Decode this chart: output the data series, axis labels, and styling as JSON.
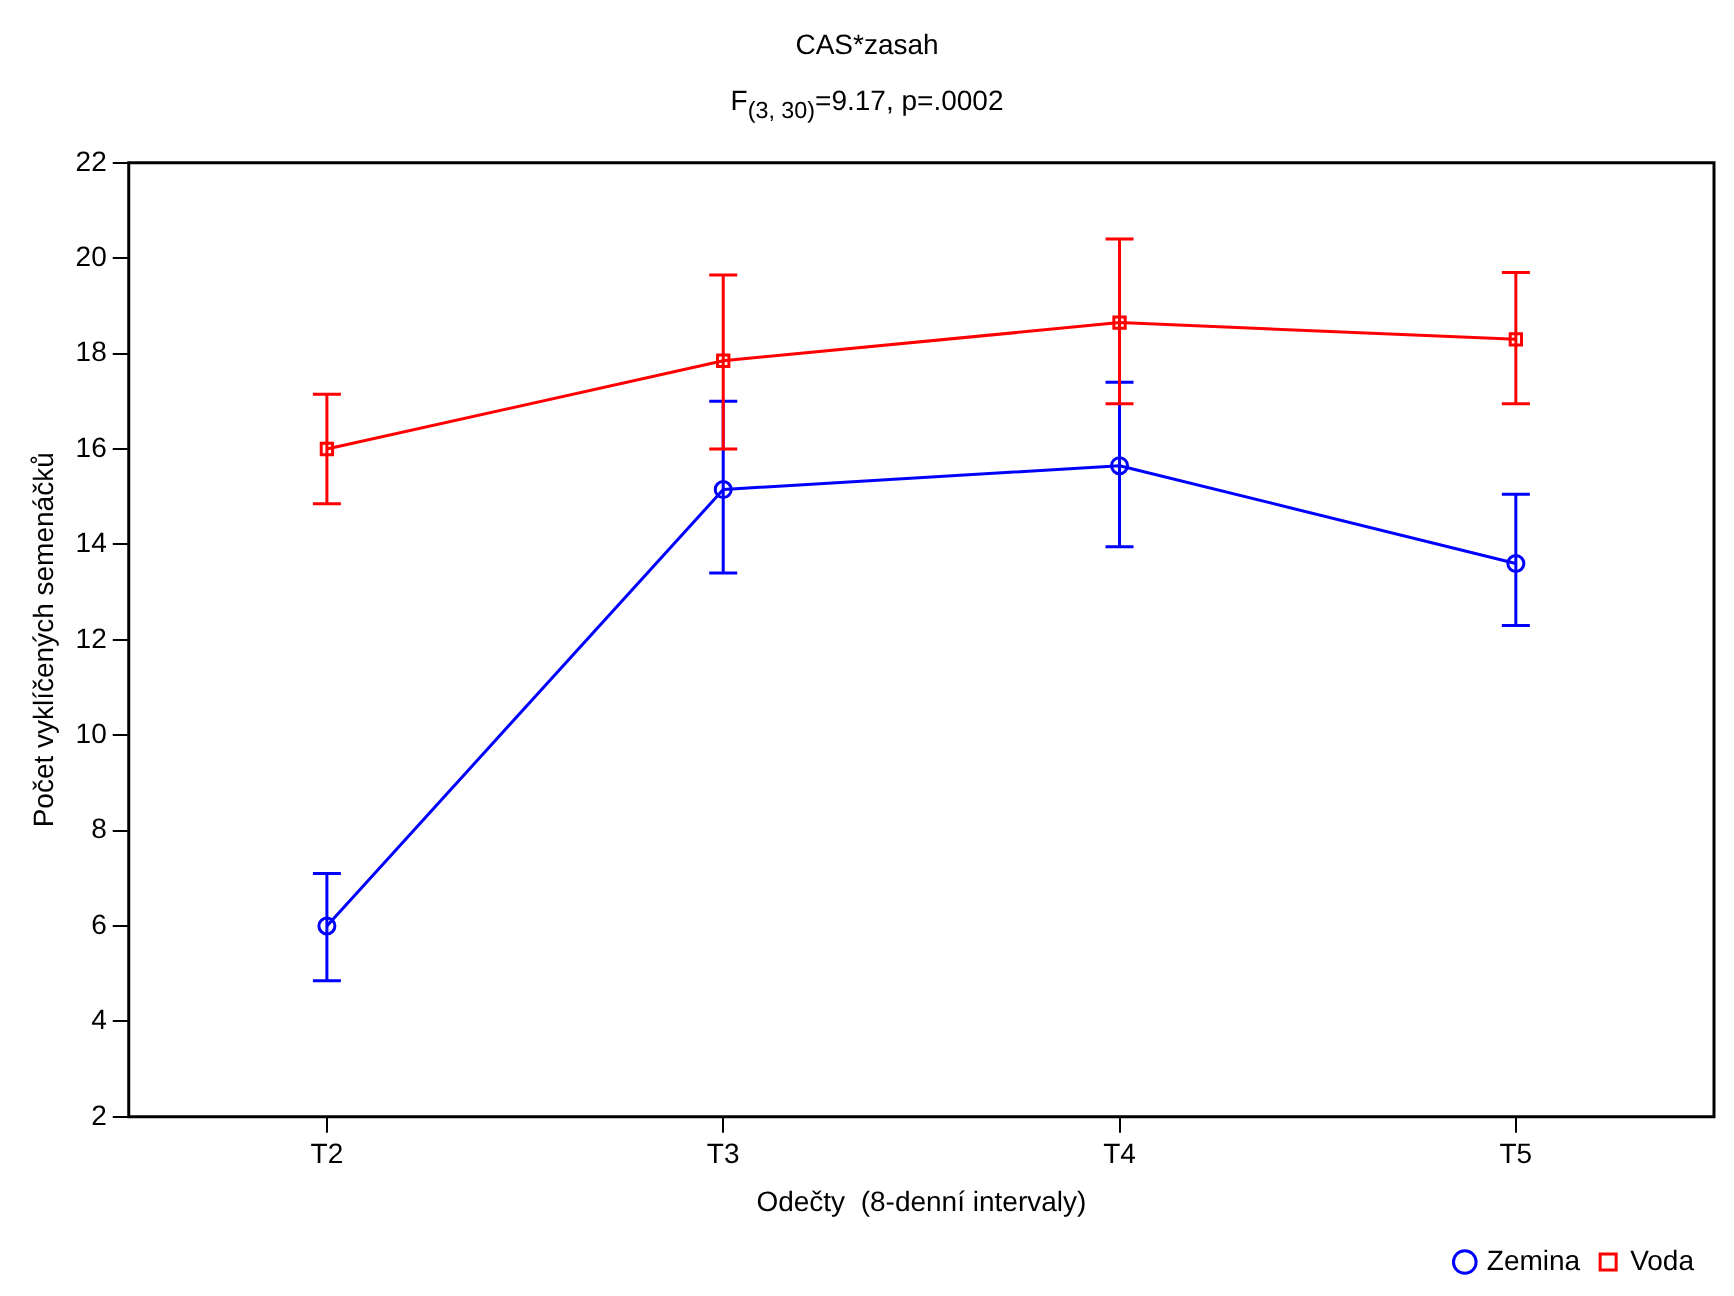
{
  "chart_data": {
    "type": "line",
    "title": "CAS*zasah",
    "subtitle": "F$_{(3, 30)}$=9.17, p=.0002",
    "xlabel": "Odečty  (8-denní intervaly)",
    "ylabel": "Počet vyklíčených semenáčků",
    "categories": [
      "T2",
      "T3",
      "T4",
      "T5"
    ],
    "series": [
      {
        "name": "Zemina",
        "color": "#0000ff",
        "marker": "circle",
        "values": [
          6.0,
          15.15,
          15.65,
          13.6
        ],
        "errors": [
          [
            4.85,
            7.1
          ],
          [
            13.4,
            17.0
          ],
          [
            13.95,
            17.4
          ],
          [
            12.3,
            15.05
          ]
        ]
      },
      {
        "name": "Voda",
        "color": "#ff0000",
        "marker": "square",
        "values": [
          16.0,
          17.85,
          18.65,
          18.3
        ],
        "errors": [
          [
            14.85,
            17.15
          ],
          [
            16.0,
            19.65
          ],
          [
            16.95,
            20.4
          ],
          [
            16.95,
            19.7
          ]
        ]
      }
    ],
    "ylim": [
      2,
      22
    ],
    "yticks": [
      2,
      4,
      6,
      8,
      10,
      12,
      14,
      16,
      18,
      20,
      22
    ],
    "grid": false,
    "legend": "bottom right",
    "line_style": "solid"
  }
}
